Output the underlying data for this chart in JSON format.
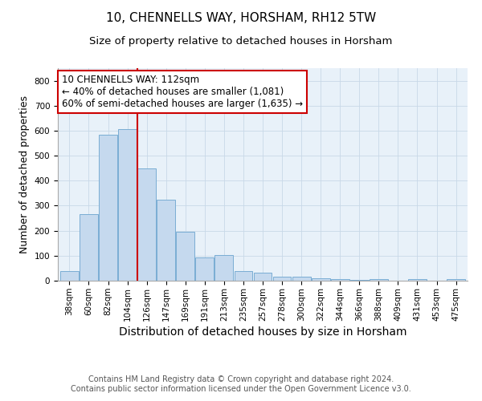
{
  "title": "10, CHENNELLS WAY, HORSHAM, RH12 5TW",
  "subtitle": "Size of property relative to detached houses in Horsham",
  "xlabel": "Distribution of detached houses by size in Horsham",
  "ylabel": "Number of detached properties",
  "categories": [
    "38sqm",
    "60sqm",
    "82sqm",
    "104sqm",
    "126sqm",
    "147sqm",
    "169sqm",
    "191sqm",
    "213sqm",
    "235sqm",
    "257sqm",
    "278sqm",
    "300sqm",
    "322sqm",
    "344sqm",
    "366sqm",
    "388sqm",
    "409sqm",
    "431sqm",
    "453sqm",
    "475sqm"
  ],
  "values": [
    38,
    265,
    585,
    605,
    450,
    325,
    195,
    93,
    103,
    38,
    33,
    15,
    15,
    10,
    5,
    3,
    5,
    0,
    5,
    0,
    5
  ],
  "bar_color": "#c5d9ee",
  "bar_edge_color": "#7aadd4",
  "red_line_color": "#cc0000",
  "red_line_x": 3.5,
  "annotation_line1": "10 CHENNELLS WAY: 112sqm",
  "annotation_line2": "← 40% of detached houses are smaller (1,081)",
  "annotation_line3": "60% of semi-detached houses are larger (1,635) →",
  "annotation_box_color": "#ffffff",
  "annotation_box_edge": "#cc0000",
  "ylim": [
    0,
    850
  ],
  "yticks": [
    0,
    100,
    200,
    300,
    400,
    500,
    600,
    700,
    800
  ],
  "footer": "Contains HM Land Registry data © Crown copyright and database right 2024.\nContains public sector information licensed under the Open Government Licence v3.0.",
  "title_fontsize": 11,
  "subtitle_fontsize": 9.5,
  "xlabel_fontsize": 10,
  "ylabel_fontsize": 9,
  "tick_fontsize": 7.5,
  "annotation_fontsize": 8.5,
  "footer_fontsize": 7
}
